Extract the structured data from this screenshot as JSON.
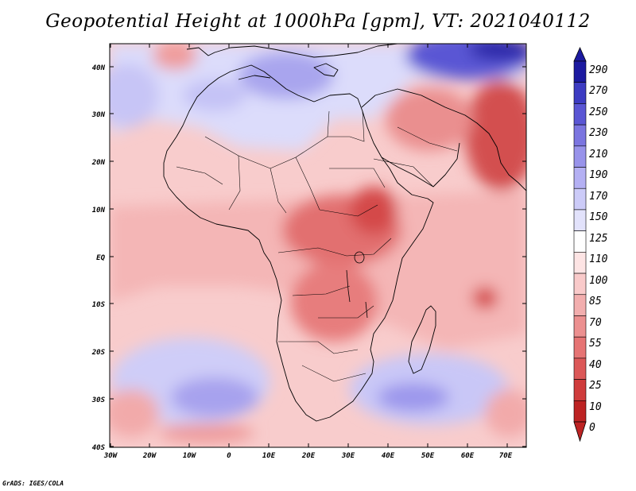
{
  "title": "Geopotential Height at 1000hPa [gpm], VT: 2021040112",
  "credit": "GrADS: IGES/COLA",
  "map": {
    "lat_ticks": [
      "40N",
      "30N",
      "20N",
      "10N",
      "EQ",
      "10S",
      "20S",
      "30S",
      "40S"
    ],
    "lon_ticks": [
      "30W",
      "20W",
      "10W",
      "0",
      "10E",
      "20E",
      "30E",
      "40E",
      "50E",
      "60E",
      "70E"
    ]
  },
  "colorbar": {
    "labels": [
      "290",
      "270",
      "250",
      "230",
      "210",
      "190",
      "170",
      "150",
      "125",
      "110",
      "100",
      "85",
      "70",
      "55",
      "40",
      "25",
      "10",
      "0"
    ],
    "colors": [
      "#1c1aa0",
      "#3d3cc2",
      "#5a56d4",
      "#7b75e0",
      "#9893ea",
      "#b4b0f3",
      "#cccbf8",
      "#e2e2fb",
      "#ffffff",
      "#fde4e4",
      "#f9caca",
      "#f2aeae",
      "#ec9090",
      "#e67474",
      "#dc5858",
      "#cf3c3c",
      "#bd2323"
    ]
  },
  "colors": {
    "ocean_south": "#e2e2fb",
    "tropics": "#f6c4c4",
    "land_high": "#dc5858",
    "coast": "#000000"
  }
}
